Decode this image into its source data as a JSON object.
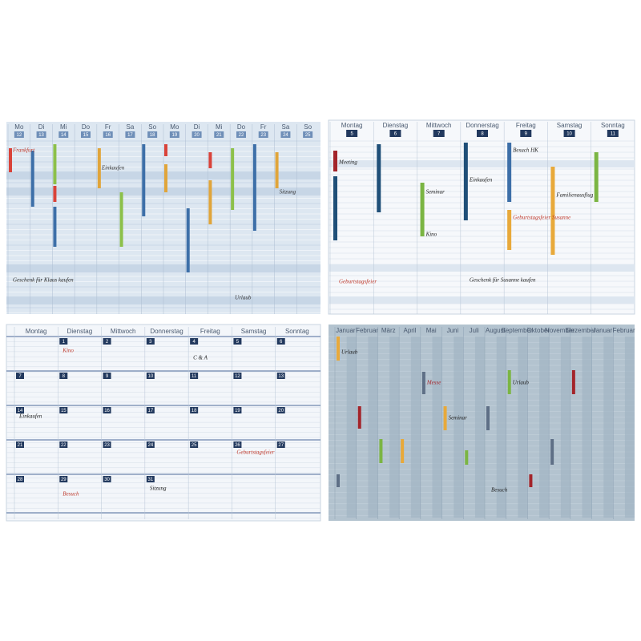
{
  "panels": [
    {
      "headers": [
        "Mo",
        "Di",
        "Mi",
        "Do",
        "Fr",
        "Sa",
        "So",
        "Mo",
        "Di",
        "Mi",
        "Do",
        "Fr",
        "Sa",
        "So"
      ],
      "numbers": [
        12,
        13,
        14,
        15,
        16,
        17,
        18,
        19,
        20,
        21,
        22,
        23,
        24,
        25
      ],
      "notes": [
        "Frankfurt",
        "Geschenk für Klaus kaufen",
        "Einkaufen",
        "Sitzung",
        "Urlaub"
      ]
    },
    {
      "headers": [
        "Montag",
        "Dienstag",
        "Mittwoch",
        "Donnerstag",
        "Freitag",
        "Samstag",
        "Sonntag"
      ],
      "numbers": [
        5,
        6,
        7,
        8,
        9,
        10,
        11
      ],
      "notes": [
        "Meeting",
        "Seminar",
        "Kino",
        "Einkaufen",
        "Besuch HK",
        "Familienausflug",
        "Geburtstagsfeier Susanne",
        "Geschenk für Susanne kaufen",
        "Geburtstagsfeier"
      ]
    },
    {
      "headers": [
        "Montag",
        "Dienstag",
        "Mittwoch",
        "Donnerstag",
        "Freitag",
        "Samstag",
        "Sonntag"
      ],
      "weeks": [
        [
          1,
          2,
          3,
          4,
          5,
          6
        ],
        [
          7,
          8,
          9,
          10,
          11,
          12,
          13
        ],
        [
          14,
          15,
          16,
          17,
          18,
          19,
          20
        ],
        [
          21,
          22,
          23,
          24,
          25,
          26,
          27
        ],
        [
          28,
          29,
          30,
          31
        ]
      ],
      "notes": [
        "Kino",
        "C & A",
        "Einkaufen",
        "Geburtstagsfeier",
        "Besuch",
        "Sitzung"
      ]
    },
    {
      "headers": [
        "Januar",
        "Februar",
        "März",
        "April",
        "Mai",
        "Juni",
        "Juli",
        "August",
        "September",
        "Oktober",
        "November",
        "Dezember",
        "Januar",
        "Februar"
      ],
      "notes": [
        "Urlaub",
        "Messe",
        "Seminar",
        "Urlaub",
        "Besuch"
      ]
    }
  ]
}
